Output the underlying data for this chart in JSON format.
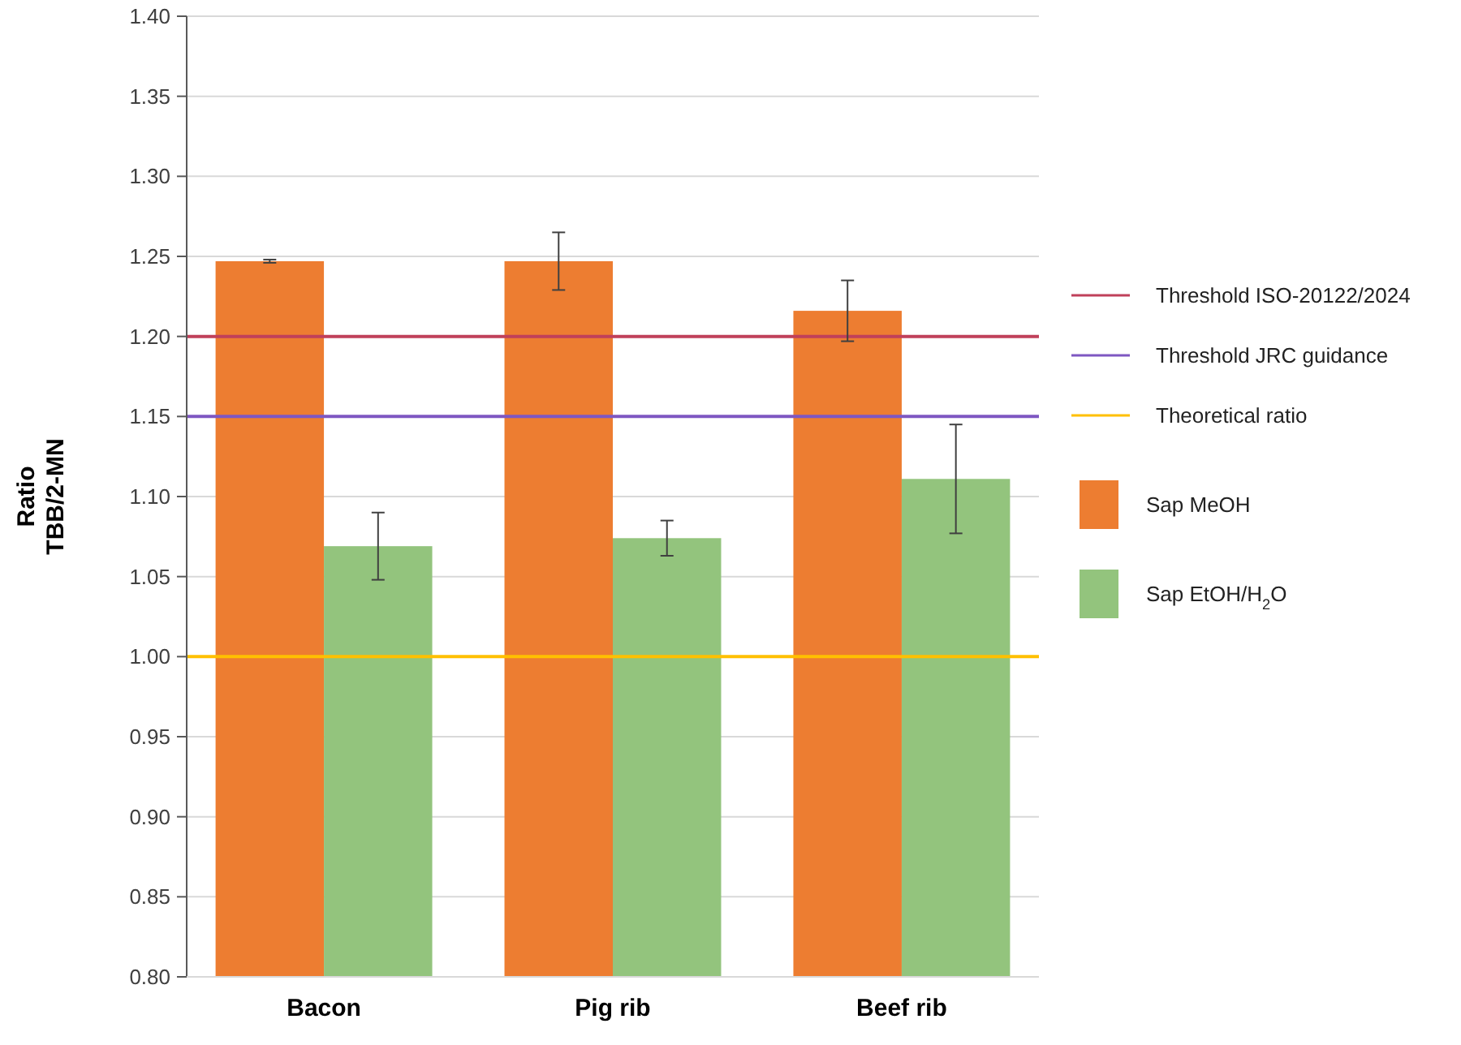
{
  "chart_data": {
    "type": "bar",
    "ylabel": "Ratio\nTBB/2-MN",
    "categories": [
      "Bacon",
      "Pig rib",
      "Beef rib"
    ],
    "series": [
      {
        "name": "Sap MeOH",
        "color": "#ed7d31",
        "values": [
          1.247,
          1.247,
          1.216
        ],
        "errors": [
          0.001,
          0.018,
          0.019
        ]
      },
      {
        "name": "Sap EtOH/H$_{2}$O",
        "color": "#93c47d",
        "values": [
          1.069,
          1.074,
          1.111
        ],
        "errors": [
          0.021,
          0.011,
          0.034
        ]
      }
    ],
    "ylim": [
      0.8,
      1.4
    ],
    "yticks": [
      {
        "value": 0.8,
        "label": "0.80"
      },
      {
        "value": 0.85,
        "label": "0.85"
      },
      {
        "value": 0.9,
        "label": "0.90"
      },
      {
        "value": 0.95,
        "label": "0.95"
      },
      {
        "value": 1.0,
        "label": "1.00"
      },
      {
        "value": 1.05,
        "label": "1.05"
      },
      {
        "value": 1.1,
        "label": "1.10"
      },
      {
        "value": 1.15,
        "label": "1.15"
      },
      {
        "value": 1.2,
        "label": "1.20"
      },
      {
        "value": 1.25,
        "label": "1.25"
      },
      {
        "value": 1.3,
        "label": "1.30"
      },
      {
        "value": 1.35,
        "label": "1.35"
      },
      {
        "value": 1.4,
        "label": "1.40"
      }
    ],
    "grid": "y",
    "legend": "right",
    "ref_lines": [
      {
        "axis": "y",
        "value": 1.2,
        "label": "Threshold ISO-20122/2024",
        "color": "#c0405a"
      },
      {
        "axis": "y",
        "value": 1.15,
        "label": "Threshold JRC guidance",
        "color": "#7e57c2"
      },
      {
        "axis": "y",
        "value": 1.0,
        "label": "Theoretical ratio",
        "color": "#ffc000"
      }
    ]
  }
}
